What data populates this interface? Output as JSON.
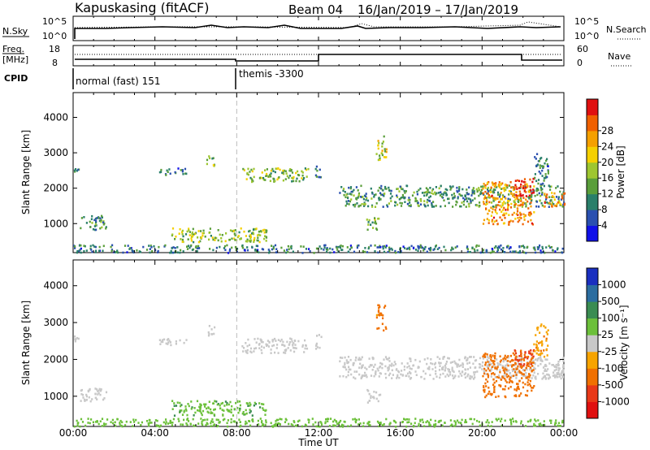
{
  "header": {
    "station": "Kapuskasing (fitACF)",
    "beam": "Beam 04",
    "date_range": "16/Jan/2019 – 17/Jan/2019"
  },
  "strips": {
    "nsky_label": "N.Sky",
    "nsky_ticks": [
      "10^5",
      "10^0"
    ],
    "nsearch_label": "N.Search",
    "freq_label_line1": "Freq.",
    "freq_label_line2": "[MHz]",
    "freq_ticks": [
      "18",
      "8"
    ],
    "nave_label": "Nave",
    "nave_ticks": [
      "60",
      "0"
    ],
    "cpid_label": "CPID",
    "cpid_modes": [
      "normal (fast) 151",
      "themis -3300"
    ]
  },
  "colorbars": {
    "power": {
      "title": "Power [dB]",
      "ticks": [
        "4",
        "8",
        "12",
        "16",
        "20",
        "24",
        "28"
      ],
      "colors": [
        "#1010e8",
        "#2a50b0",
        "#2a7f6a",
        "#5a9e3a",
        "#9ec630",
        "#f5d000",
        "#f5a000",
        "#f06000",
        "#e01010"
      ]
    },
    "velocity": {
      "title": "Velocity [m s⁻¹]",
      "ticks": [
        "1000",
        "500",
        "100",
        "25",
        "-25",
        "-100",
        "-500",
        "-1000"
      ],
      "colors": [
        "#1a2fc0",
        "#2b6da0",
        "#3a8c52",
        "#6cc03a",
        "#c8c8c8",
        "#f7a400",
        "#f07000",
        "#e83818",
        "#e01010"
      ]
    }
  },
  "axes": {
    "xlabel": "Time UT",
    "ylabel": "Slant Range [km]"
  },
  "chart_data": [
    {
      "type": "heatmap",
      "panel": "power",
      "x_unit": "hours UT",
      "xlim": [
        0,
        24
      ],
      "xticks": [
        "00:00",
        "04:00",
        "08:00",
        "12:00",
        "16:00",
        "20:00",
        "00:00"
      ],
      "ylabel": "Slant Range [km]",
      "ylim": [
        180,
        4700
      ],
      "yticks": [
        1000,
        2000,
        3000,
        4000
      ],
      "colorbar_label": "Power [dB]",
      "colorbar_range": [
        0,
        30
      ],
      "mode_change_hour": 8,
      "echo_regions": [
        {
          "t0": 0.0,
          "t1": 24.0,
          "r0": 200,
          "r1": 420,
          "value": 8
        },
        {
          "t0": 0.0,
          "t1": 0.3,
          "r0": 2450,
          "r1": 2650,
          "value": 8
        },
        {
          "t0": 0.3,
          "t1": 1.6,
          "r0": 850,
          "r1": 1250,
          "value": 10
        },
        {
          "t0": 4.2,
          "t1": 5.5,
          "r0": 2400,
          "r1": 2600,
          "value": 8
        },
        {
          "t0": 6.5,
          "t1": 6.9,
          "r0": 2650,
          "r1": 2950,
          "value": 14
        },
        {
          "t0": 4.8,
          "t1": 9.5,
          "r0": 500,
          "r1": 900,
          "value": 14
        },
        {
          "t0": 8.2,
          "t1": 11.5,
          "r0": 2200,
          "r1": 2600,
          "value": 14
        },
        {
          "t0": 11.8,
          "t1": 12.1,
          "r0": 2300,
          "r1": 2700,
          "value": 8
        },
        {
          "t0": 14.3,
          "t1": 15.0,
          "r0": 850,
          "r1": 1200,
          "value": 12
        },
        {
          "t0": 14.8,
          "t1": 15.3,
          "r0": 2800,
          "r1": 3500,
          "value": 16
        },
        {
          "t0": 13.0,
          "t1": 24.0,
          "r0": 1500,
          "r1": 2100,
          "value": 10
        },
        {
          "t0": 20.0,
          "t1": 22.5,
          "r0": 1000,
          "r1": 2200,
          "value": 22
        },
        {
          "t0": 21.5,
          "t1": 22.5,
          "r0": 1800,
          "r1": 2300,
          "value": 28
        },
        {
          "t0": 22.5,
          "t1": 23.2,
          "r0": 2100,
          "r1": 3000,
          "value": 8
        },
        {
          "t0": 23.0,
          "t1": 24.0,
          "r0": 1500,
          "r1": 1900,
          "value": 22
        }
      ]
    },
    {
      "type": "heatmap",
      "panel": "velocity",
      "x_unit": "hours UT",
      "xlim": [
        0,
        24
      ],
      "xticks": [
        "00:00",
        "04:00",
        "08:00",
        "12:00",
        "16:00",
        "20:00",
        "00:00"
      ],
      "ylabel": "Slant Range [km]",
      "ylim": [
        180,
        4700
      ],
      "yticks": [
        1000,
        2000,
        3000,
        4000
      ],
      "colorbar_label": "Velocity [m s⁻¹]",
      "colorbar_range": [
        -1000,
        1000
      ],
      "mode_change_hour": 8,
      "echo_regions": [
        {
          "t0": 0.0,
          "t1": 24.0,
          "r0": 200,
          "r1": 420,
          "value": 60
        },
        {
          "t0": 0.0,
          "t1": 0.3,
          "r0": 2450,
          "r1": 2650,
          "value": 0
        },
        {
          "t0": 0.3,
          "t1": 1.6,
          "r0": 850,
          "r1": 1250,
          "value": 0
        },
        {
          "t0": 4.2,
          "t1": 5.5,
          "r0": 2400,
          "r1": 2600,
          "value": 0
        },
        {
          "t0": 6.5,
          "t1": 6.9,
          "r0": 2650,
          "r1": 2950,
          "value": 0
        },
        {
          "t0": 4.8,
          "t1": 9.5,
          "r0": 500,
          "r1": 900,
          "value": 80
        },
        {
          "t0": 8.2,
          "t1": 11.5,
          "r0": 2200,
          "r1": 2600,
          "value": 0
        },
        {
          "t0": 11.8,
          "t1": 12.1,
          "r0": 2300,
          "r1": 2700,
          "value": 0
        },
        {
          "t0": 14.3,
          "t1": 15.0,
          "r0": 850,
          "r1": 1200,
          "value": 0
        },
        {
          "t0": 14.8,
          "t1": 15.3,
          "r0": 2800,
          "r1": 3500,
          "value": -150
        },
        {
          "t0": 13.0,
          "t1": 24.0,
          "r0": 1500,
          "r1": 2100,
          "value": 0
        },
        {
          "t0": 20.0,
          "t1": 22.5,
          "r0": 1000,
          "r1": 2200,
          "value": -300
        },
        {
          "t0": 21.5,
          "t1": 22.5,
          "r0": 1800,
          "r1": 2300,
          "value": -700
        },
        {
          "t0": 22.5,
          "t1": 23.2,
          "r0": 2100,
          "r1": 3000,
          "value": -80
        },
        {
          "t0": 23.0,
          "t1": 24.0,
          "r0": 1500,
          "r1": 1900,
          "value": 0
        }
      ]
    }
  ]
}
